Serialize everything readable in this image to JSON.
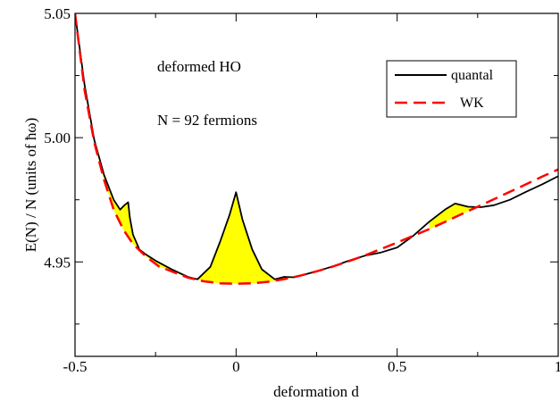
{
  "chart_data": {
    "type": "line",
    "annotations": [
      "deformed HO",
      "N = 92 fermions"
    ],
    "xlabel": "deformation  d",
    "ylabel": "E(N) / N   (units of ħω)",
    "xlim": [
      -0.5,
      1.0
    ],
    "ylim": [
      4.912,
      5.05
    ],
    "xticks": [
      -0.5,
      0,
      0.5,
      1
    ],
    "xtick_labels": [
      "-0.5",
      "0",
      "0.5",
      "1"
    ],
    "yticks": [
      4.95,
      5.0,
      5.05
    ],
    "ytick_labels": [
      "4.95",
      "5.00",
      "5.05"
    ],
    "grid": false,
    "legend": {
      "placement": "top-right",
      "entries": [
        "quantal",
        "WK"
      ]
    },
    "shading": {
      "color": "#ffff00",
      "description": "area between quantal and WK where quantal lies above"
    },
    "series": [
      {
        "name": "quantal",
        "color": "#000000",
        "style": "solid",
        "x": [
          -0.5,
          -0.47,
          -0.44,
          -0.41,
          -0.38,
          -0.36,
          -0.345,
          -0.335,
          -0.33,
          -0.32,
          -0.3,
          -0.28,
          -0.25,
          -0.2,
          -0.15,
          -0.12,
          -0.08,
          -0.05,
          -0.02,
          0.0,
          0.02,
          0.05,
          0.08,
          0.12,
          0.15,
          0.18,
          0.2,
          0.25,
          0.3,
          0.35,
          0.4,
          0.45,
          0.5,
          0.55,
          0.6,
          0.65,
          0.68,
          0.72,
          0.76,
          0.8,
          0.85,
          0.9,
          0.95,
          1.0
        ],
        "y": [
          5.05,
          5.021,
          4.999,
          4.985,
          4.975,
          4.971,
          4.973,
          4.974,
          4.968,
          4.961,
          4.955,
          4.953,
          4.9505,
          4.947,
          4.944,
          4.943,
          4.948,
          4.958,
          4.969,
          4.978,
          4.967,
          4.955,
          4.947,
          4.943,
          4.944,
          4.9438,
          4.9445,
          4.9462,
          4.9482,
          4.9505,
          4.9525,
          4.9538,
          4.9558,
          4.9605,
          4.9662,
          4.9712,
          4.9735,
          4.9722,
          4.972,
          4.9728,
          4.975,
          4.9782,
          4.9812,
          4.9845
        ]
      },
      {
        "name": "WK",
        "color": "#ff0000",
        "style": "dashed",
        "x": [
          -0.5,
          -0.47,
          -0.44,
          -0.41,
          -0.38,
          -0.35,
          -0.32,
          -0.28,
          -0.24,
          -0.2,
          -0.15,
          -0.1,
          -0.05,
          0.0,
          0.05,
          0.1,
          0.15,
          0.2,
          0.25,
          0.3,
          0.35,
          0.4,
          0.45,
          0.5,
          0.55,
          0.6,
          0.65,
          0.7,
          0.75,
          0.8,
          0.85,
          0.9,
          0.95,
          1.0
        ],
        "y": [
          5.05,
          5.019,
          4.998,
          4.983,
          4.971,
          4.963,
          4.9572,
          4.9522,
          4.9482,
          4.9462,
          4.9437,
          4.9422,
          4.9414,
          4.9412,
          4.9414,
          4.942,
          4.9431,
          4.9445,
          4.9462,
          4.9481,
          4.9503,
          4.9526,
          4.9552,
          4.9578,
          4.9605,
          4.9632,
          4.9662,
          4.9692,
          4.9722,
          4.9752,
          4.9782,
          4.9812,
          4.9843,
          4.9872
        ]
      }
    ]
  }
}
